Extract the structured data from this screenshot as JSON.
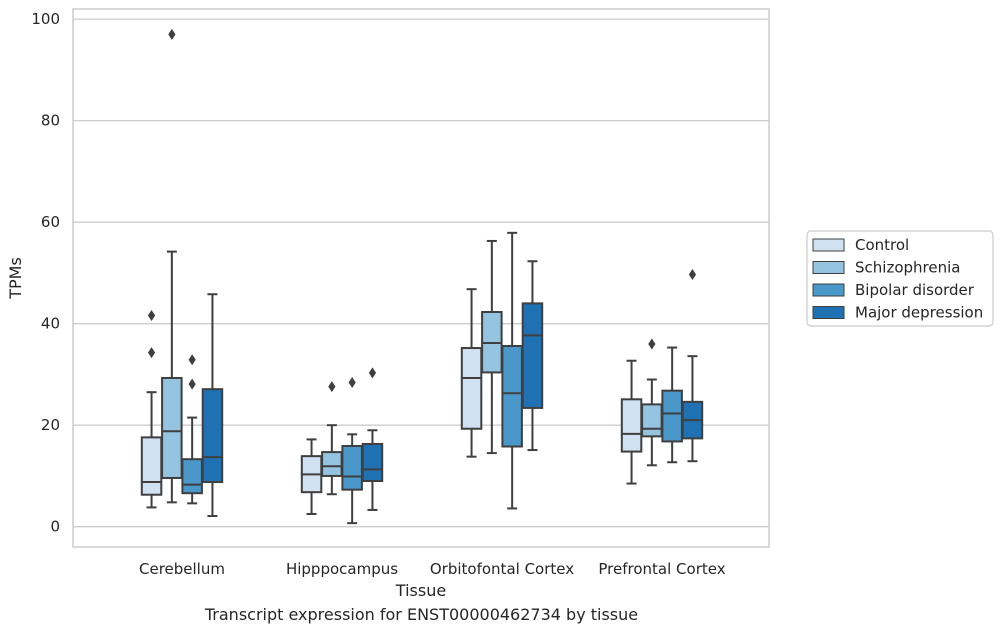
{
  "caption": "Transcript expression for ENST00000462734 by tissue",
  "chart_data": {
    "type": "box",
    "xlabel": "Tissue",
    "ylabel": "TPMs",
    "ylim": [
      -4,
      102
    ],
    "yticks": [
      0,
      20,
      40,
      60,
      80,
      100
    ],
    "grid": "horizontal",
    "legend_position": "right",
    "categories": [
      "Cerebellum",
      "Hipppocampus",
      "Orbitofontal Cortex",
      "Prefrontal Cortex"
    ],
    "series": [
      {
        "name": "Control",
        "color": "#d0e1f2",
        "boxes": [
          {
            "min": 3.8,
            "q1": 6.3,
            "median": 8.8,
            "q3": 17.6,
            "max": 26.5,
            "outliers": [
              34.3,
              41.6
            ]
          },
          {
            "min": 2.5,
            "q1": 6.8,
            "median": 10.3,
            "q3": 13.9,
            "max": 17.2,
            "outliers": []
          },
          {
            "min": 13.8,
            "q1": 19.3,
            "median": 29.3,
            "q3": 35.2,
            "max": 46.8,
            "outliers": []
          },
          {
            "min": 8.5,
            "q1": 14.8,
            "median": 18.3,
            "q3": 25.1,
            "max": 32.7,
            "outliers": []
          }
        ]
      },
      {
        "name": "Schizophrenia",
        "color": "#94c4df",
        "boxes": [
          {
            "min": 4.8,
            "q1": 9.6,
            "median": 18.8,
            "q3": 29.3,
            "max": 54.2,
            "outliers": [
              97.0
            ]
          },
          {
            "min": 6.4,
            "q1": 10.0,
            "median": 11.9,
            "q3": 14.7,
            "max": 20.0,
            "outliers": [
              27.6
            ]
          },
          {
            "min": 14.5,
            "q1": 30.4,
            "median": 36.2,
            "q3": 42.3,
            "max": 56.3,
            "outliers": []
          },
          {
            "min": 12.1,
            "q1": 17.8,
            "median": 19.3,
            "q3": 24.1,
            "max": 29.0,
            "outliers": [
              36.0
            ]
          }
        ]
      },
      {
        "name": "Bipolar disorder",
        "color": "#4a98c9",
        "boxes": [
          {
            "min": 4.6,
            "q1": 6.6,
            "median": 8.3,
            "q3": 13.3,
            "max": 21.5,
            "outliers": [
              28.1,
              32.9
            ]
          },
          {
            "min": 0.7,
            "q1": 7.3,
            "median": 9.9,
            "q3": 15.9,
            "max": 18.2,
            "outliers": [
              28.4
            ]
          },
          {
            "min": 3.6,
            "q1": 15.8,
            "median": 26.3,
            "q3": 35.6,
            "max": 57.9,
            "outliers": []
          },
          {
            "min": 12.7,
            "q1": 16.8,
            "median": 22.3,
            "q3": 26.8,
            "max": 35.3,
            "outliers": []
          }
        ]
      },
      {
        "name": "Major depression",
        "color": "#2070b4",
        "boxes": [
          {
            "min": 2.1,
            "q1": 8.8,
            "median": 13.7,
            "q3": 27.1,
            "max": 45.8,
            "outliers": []
          },
          {
            "min": 3.3,
            "q1": 9.0,
            "median": 11.3,
            "q3": 16.3,
            "max": 19.0,
            "outliers": [
              30.3
            ]
          },
          {
            "min": 15.1,
            "q1": 23.4,
            "median": 37.7,
            "q3": 44.0,
            "max": 52.3,
            "outliers": []
          },
          {
            "min": 12.9,
            "q1": 17.4,
            "median": 21.0,
            "q3": 24.6,
            "max": 33.6,
            "outliers": [
              49.7
            ]
          }
        ]
      }
    ]
  }
}
